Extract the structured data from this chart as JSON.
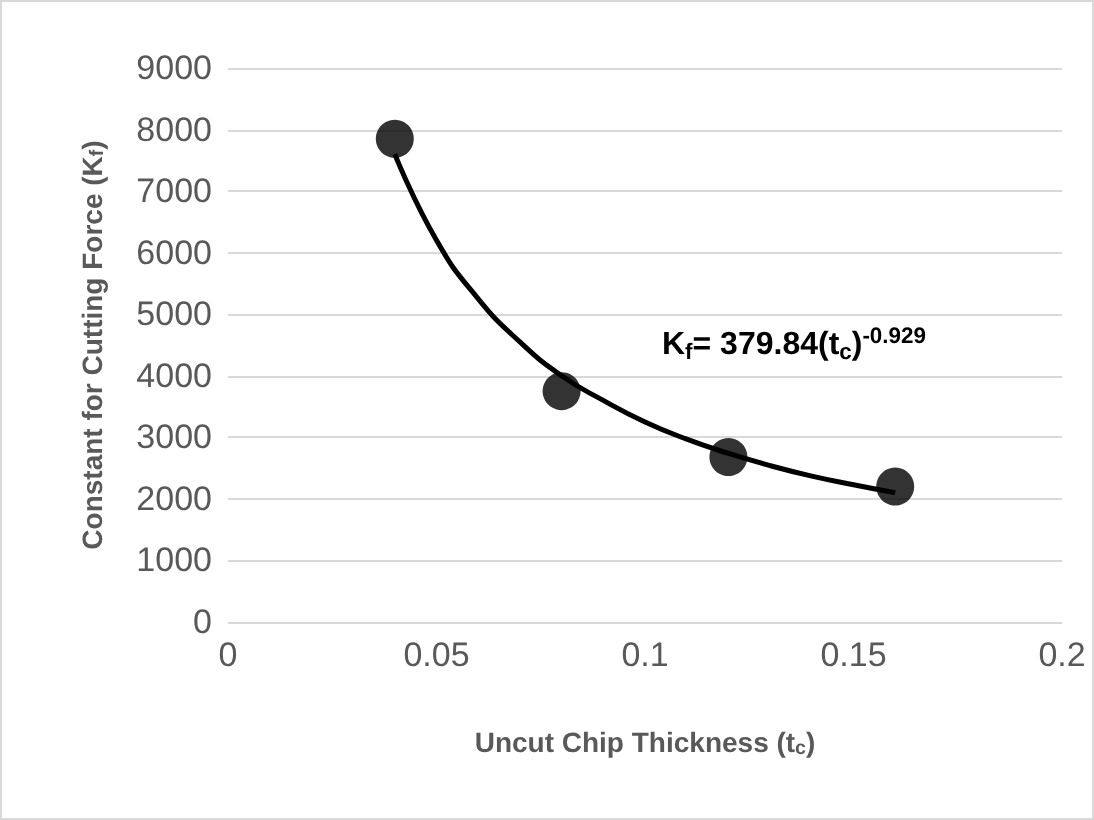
{
  "chart_data": {
    "type": "scatter",
    "xlabel": "Uncut Chip Thickness (t$_{c}$)",
    "ylabel": "Constant for Cutting Force (K$_{f}$)",
    "annotations": [
      "K$_{f}$= 379.84(t$_{c}$)$^{-0.929}$"
    ],
    "series": [
      {
        "type": "scatter",
        "color": "#000000",
        "x": [
          0.04,
          0.08,
          0.12,
          0.16
        ],
        "values": [
          7850,
          3750,
          2680,
          2200
        ],
        "marker": "circle"
      },
      {
        "type": "line",
        "color": "#000000",
        "x": [
          0.04,
          0.05,
          0.06,
          0.07,
          0.08,
          0.09,
          0.1,
          0.11,
          0.12,
          0.13,
          0.14,
          0.15,
          0.16
        ],
        "values": [
          7600,
          6200,
          5250,
          4550,
          4000,
          3600,
          3250,
          2970,
          2740,
          2540,
          2370,
          2230,
          2100
        ],
        "marker": "none"
      }
    ],
    "xlim": [
      0,
      0.2
    ],
    "xticks": [
      0,
      0.05,
      0.1,
      0.15,
      0.2
    ],
    "ylim": [
      0,
      9000
    ],
    "yticks": [
      0,
      1000,
      2000,
      3000,
      4000,
      5000,
      6000,
      7000,
      8000,
      9000
    ],
    "grid": "y"
  }
}
